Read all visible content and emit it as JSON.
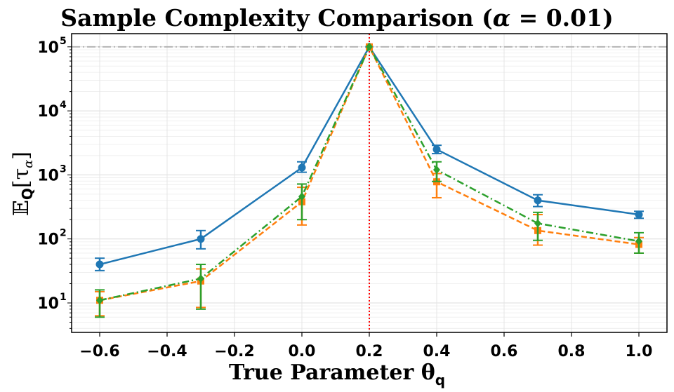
{
  "chart_data": {
    "type": "line",
    "title": "Sample Complexity Comparison (α = 0.01)",
    "xlabel": "True Parameter  θq",
    "ylabel": "E_Q[τ_α]",
    "yscale": "log",
    "xlim": [
      -0.68,
      1.08
    ],
    "ylim": [
      3.5,
      160000
    ],
    "x_ticks": [
      -0.6,
      -0.4,
      -0.2,
      0.0,
      0.2,
      0.4,
      0.6,
      0.8,
      1.0
    ],
    "x_tick_labels": [
      "−0.6",
      "−0.4",
      "−0.2",
      "0.0",
      "0.2",
      "0.4",
      "0.6",
      "0.8",
      "1.0"
    ],
    "y_ticks": [
      10,
      100,
      1000,
      10000,
      100000
    ],
    "y_tick_labels": [
      "10",
      "10",
      "10",
      "10",
      "10"
    ],
    "y_tick_exponents": [
      "1",
      "2",
      "3",
      "4",
      "5"
    ],
    "grid": true,
    "legend": null,
    "x": [
      -0.6,
      -0.3,
      0.0,
      0.2,
      0.4,
      0.7,
      1.0
    ],
    "series": [
      {
        "name": "blue",
        "color": "#1f77b4",
        "linestyle": "solid",
        "marker": "circle",
        "values": [
          40,
          100,
          1300,
          100000,
          2500,
          400,
          240
        ],
        "err_low": [
          32,
          70,
          1100,
          100000,
          2150,
          320,
          210
        ],
        "err_high": [
          50,
          135,
          1600,
          100000,
          2900,
          490,
          270
        ]
      },
      {
        "name": "orange",
        "color": "#ff7f0e",
        "linestyle": "dashed",
        "marker": "square",
        "values": [
          11,
          22,
          380,
          100000,
          780,
          135,
          82
        ],
        "err_low": [
          6.3,
          8.5,
          165,
          100000,
          440,
          80,
          60
        ],
        "err_high": [
          15,
          34,
          640,
          100000,
          1050,
          240,
          105
        ]
      },
      {
        "name": "green",
        "color": "#2ca02c",
        "linestyle": "dashdot",
        "marker": "diamond",
        "values": [
          11,
          24,
          460,
          100000,
          1200,
          175,
          92
        ],
        "err_low": [
          6.0,
          8.0,
          200,
          100000,
          790,
          95,
          60
        ],
        "err_high": [
          16,
          40,
          720,
          100000,
          1600,
          260,
          125
        ]
      }
    ],
    "annotations": [
      {
        "type": "hline",
        "y": 100000,
        "color": "#b0b0b0",
        "linestyle": "dashdot"
      },
      {
        "type": "vline",
        "x": 0.2,
        "color": "#ff0000",
        "linestyle": "dotted"
      }
    ]
  },
  "labels": {
    "title_main": "Sample Complexity Comparison (",
    "title_alpha": "α",
    "title_rest": " = 0.01)",
    "xlabel_main": "True Parameter  θ",
    "xlabel_sub": "q",
    "ylabel_E": "𝔼",
    "ylabel_Q": "Q",
    "ylabel_tau": "[τ",
    "ylabel_alpha": "α",
    "ylabel_close": "]"
  }
}
